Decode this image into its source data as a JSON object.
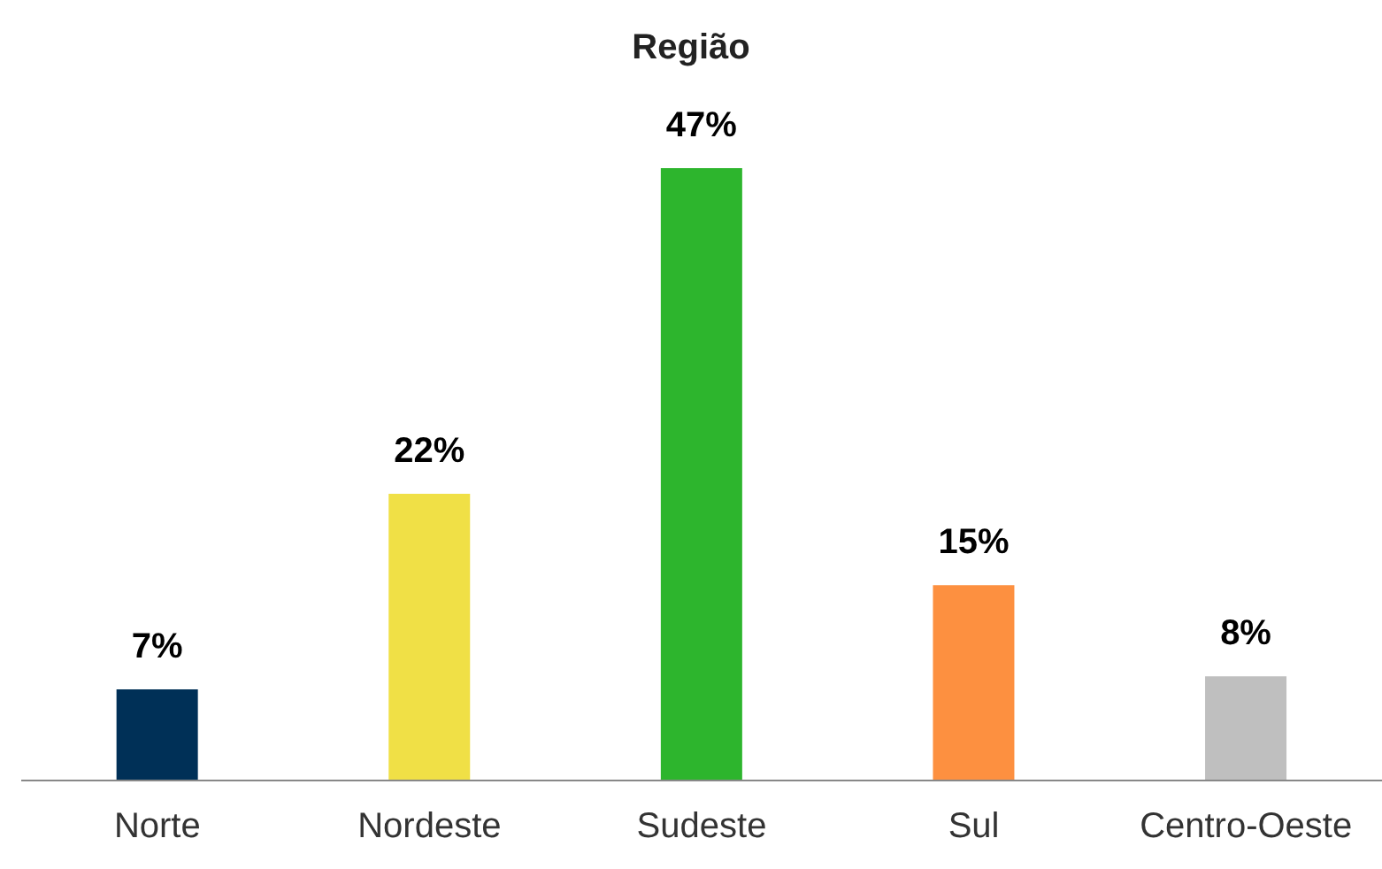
{
  "chart_data": {
    "type": "bar",
    "title": "Região",
    "categories": [
      "Norte",
      "Nordeste",
      "Sudeste",
      "Sul",
      "Centro-Oeste"
    ],
    "values": [
      7,
      22,
      47,
      15,
      8
    ],
    "colors": [
      "#003057",
      "#f0e046",
      "#2db52d",
      "#fd9040",
      "#bfbfbf"
    ],
    "value_labels": [
      "7%",
      "22%",
      "47%",
      "15%",
      "8%"
    ],
    "grid": false,
    "legend": false
  }
}
